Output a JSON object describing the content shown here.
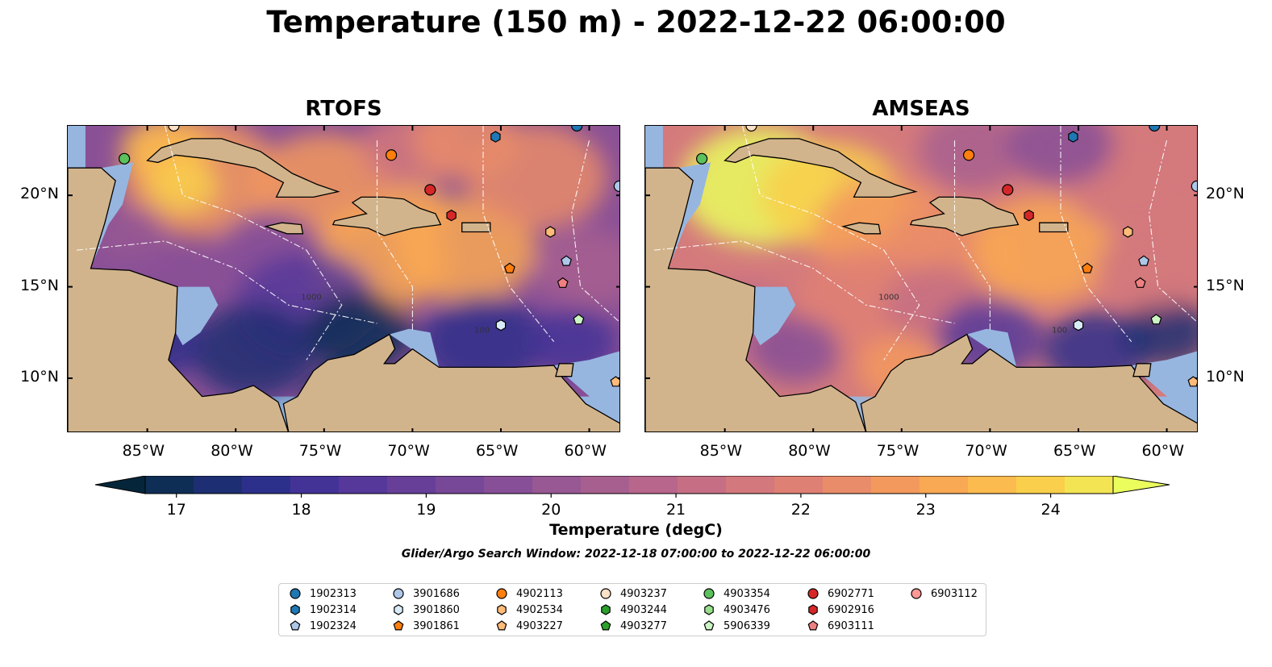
{
  "title": "Temperature (150 m) - 2022-12-22 06:00:00",
  "panels": [
    {
      "name": "RTOFS"
    },
    {
      "name": "AMSEAS"
    }
  ],
  "map": {
    "lon_range": [
      -89.5,
      -58.2
    ],
    "lat_range": [
      7.0,
      23.8
    ],
    "lon_ticks": [
      "85°W",
      "80°W",
      "75°W",
      "70°W",
      "65°W",
      "60°W"
    ],
    "lat_ticks": [
      "20°N",
      "15°N",
      "10°N"
    ],
    "land_color": "#d2b48c",
    "ocean_color": "#96b6e0",
    "contour_labels": [
      "100",
      "1000"
    ]
  },
  "colorbar": {
    "label": "Temperature (degC)",
    "min": 17,
    "max": 24.5,
    "extend": "both",
    "ticks": [
      "17",
      "18",
      "19",
      "20",
      "21",
      "22",
      "23",
      "24"
    ],
    "colors": [
      "#05263a",
      "#0f2e55",
      "#1d2f72",
      "#2d308a",
      "#433397",
      "#56389a",
      "#673f99",
      "#774798",
      "#874f97",
      "#975893",
      "#a75f8f",
      "#b8668b",
      "#c66f84",
      "#d3787d",
      "#df8074",
      "#e98c6a",
      "#f3995e",
      "#f9a853",
      "#fbbb4e",
      "#f9cf4c",
      "#f3e454",
      "#eafd5d"
    ]
  },
  "search_window": "Glider/Argo Search Window: 2022-12-18 07:00:00 to 2022-12-22 06:00:00",
  "legend": [
    {
      "id": "1902313",
      "marker": "circle",
      "color": "#1f77b4"
    },
    {
      "id": "1902314",
      "marker": "hexagon",
      "color": "#1f77b4"
    },
    {
      "id": "1902324",
      "marker": "pentagon",
      "color": "#aec7e8"
    },
    {
      "id": "3901686",
      "marker": "circle",
      "color": "#aec7e8"
    },
    {
      "id": "3901860",
      "marker": "hexagon",
      "color": "#d8ecf8"
    },
    {
      "id": "3901861",
      "marker": "pentagon",
      "color": "#ff7f0e"
    },
    {
      "id": "4902113",
      "marker": "circle",
      "color": "#ff7f0e"
    },
    {
      "id": "4902534",
      "marker": "hexagon",
      "color": "#ffbb78"
    },
    {
      "id": "4903227",
      "marker": "pentagon",
      "color": "#ffbb78"
    },
    {
      "id": "4903237",
      "marker": "circle",
      "color": "#fde0c5"
    },
    {
      "id": "4903244",
      "marker": "hexagon",
      "color": "#2ca02c"
    },
    {
      "id": "4903277",
      "marker": "pentagon",
      "color": "#2ca02c"
    },
    {
      "id": "4903354",
      "marker": "circle",
      "color": "#5cc05c"
    },
    {
      "id": "4903476",
      "marker": "hexagon",
      "color": "#98df8a"
    },
    {
      "id": "5906339",
      "marker": "pentagon",
      "color": "#ccf5c4"
    },
    {
      "id": "6902771",
      "marker": "circle",
      "color": "#d62728"
    },
    {
      "id": "6902916",
      "marker": "hexagon",
      "color": "#d62728"
    },
    {
      "id": "6903111",
      "marker": "pentagon",
      "color": "#f08080"
    },
    {
      "id": "6903112",
      "marker": "circle",
      "color": "#ff9896"
    }
  ],
  "floats": [
    {
      "id": "4903354",
      "lon": -86.3,
      "lat": 22.0
    },
    {
      "id": "4903237",
      "lon": -83.5,
      "lat": 23.8
    },
    {
      "id": "4902113",
      "lon": -71.2,
      "lat": 22.2
    },
    {
      "id": "1902314",
      "lon": -65.3,
      "lat": 23.2
    },
    {
      "id": "1902313",
      "lon": -60.7,
      "lat": 23.8
    },
    {
      "id": "3901686",
      "lon": -58.3,
      "lat": 20.5
    },
    {
      "id": "6902771",
      "lon": -69.0,
      "lat": 20.3
    },
    {
      "id": "6902916",
      "lon": -67.8,
      "lat": 18.9
    },
    {
      "id": "4902534",
      "lon": -62.2,
      "lat": 18.0
    },
    {
      "id": "3901861",
      "lon": -64.5,
      "lat": 16.0
    },
    {
      "id": "1902324",
      "lon": -61.3,
      "lat": 16.4
    },
    {
      "id": "6903111",
      "lon": -61.5,
      "lat": 15.2
    },
    {
      "id": "3901860",
      "lon": -65.0,
      "lat": 12.9
    },
    {
      "id": "5906339",
      "lon": -60.6,
      "lat": 13.2
    },
    {
      "id": "4903227",
      "lon": -58.5,
      "lat": 9.8
    }
  ]
}
